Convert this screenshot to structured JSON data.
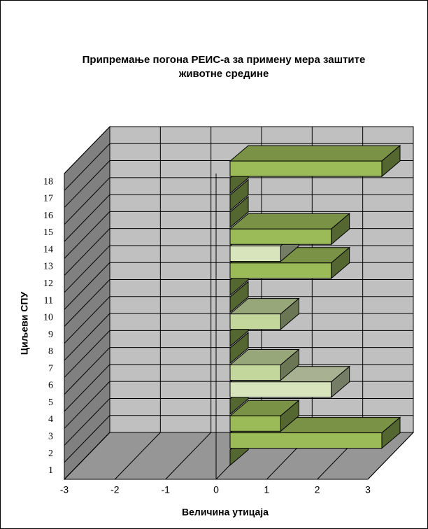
{
  "chart_data": {
    "type": "bar3d",
    "title": "Припремање погона РЕИС-а за примену мера заштите животне средине",
    "xlabel": "Величина утицаја",
    "ylabel": "Циљеви СПУ",
    "categories": [
      "1",
      "2",
      "3",
      "4",
      "5",
      "6",
      "7",
      "8",
      "9",
      "10",
      "11",
      "12",
      "13",
      "14",
      "15",
      "16",
      "17",
      "18"
    ],
    "values": [
      0,
      3,
      1,
      0,
      2,
      1,
      0,
      0,
      1,
      0,
      0,
      2,
      1,
      2,
      0,
      0,
      0,
      3
    ],
    "colors": [
      "#9bbb59",
      "#9bbb59",
      "#9bbb59",
      "#9bbb59",
      "#d7e4bc",
      "#c3d69b",
      "#9bbb59",
      "#9bbb59",
      "#c3d69b",
      "#9bbb59",
      "#9bbb59",
      "#9bbb59",
      "#d7e4bc",
      "#9bbb59",
      "#9bbb59",
      "#9bbb59",
      "#9bbb59",
      "#9bbb59"
    ],
    "xlim": [
      -3,
      3
    ],
    "xticks": [
      -3,
      -2,
      -1,
      0,
      1,
      2,
      3
    ],
    "grid": true
  }
}
